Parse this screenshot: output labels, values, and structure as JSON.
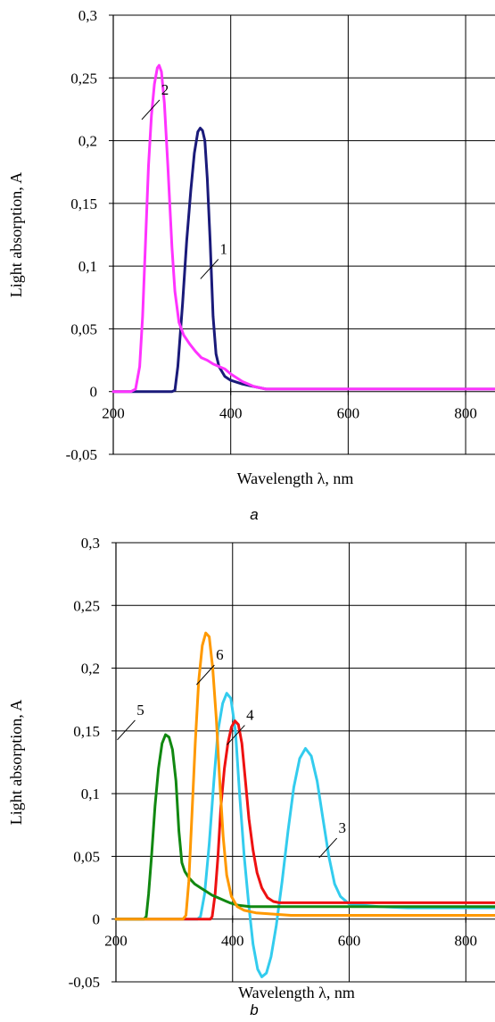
{
  "chart_data": [
    {
      "type": "line",
      "panel_label": "a",
      "xlabel": "Wavelength λ, nm",
      "ylabel": "Light absorption, A",
      "xlim": [
        200,
        850
      ],
      "ylim": [
        -0.05,
        0.3
      ],
      "grid": true,
      "x_ticks": [
        200,
        400,
        600,
        800
      ],
      "x_tick_labels": [
        "200",
        "400",
        "600",
        "800"
      ],
      "y_ticks": [
        -0.05,
        0,
        0.05,
        0.1,
        0.15,
        0.2,
        0.25,
        0.3
      ],
      "y_tick_labels": [
        "-0,05",
        "0",
        "0,05",
        "0,1",
        "0,15",
        "0,2",
        "0,25",
        "0,3"
      ],
      "series": [
        {
          "name": "1",
          "color": "#1a1a7a",
          "points": [
            [
              200,
              0
            ],
            [
              300,
              0
            ],
            [
              305,
              0.001
            ],
            [
              310,
              0.02
            ],
            [
              318,
              0.07
            ],
            [
              325,
              0.12
            ],
            [
              332,
              0.16
            ],
            [
              338,
              0.19
            ],
            [
              344,
              0.207
            ],
            [
              348,
              0.21
            ],
            [
              352,
              0.208
            ],
            [
              356,
              0.2
            ],
            [
              360,
              0.17
            ],
            [
              365,
              0.12
            ],
            [
              370,
              0.06
            ],
            [
              375,
              0.03
            ],
            [
              380,
              0.02
            ],
            [
              390,
              0.012
            ],
            [
              400,
              0.009
            ],
            [
              420,
              0.006
            ],
            [
              440,
              0.004
            ],
            [
              460,
              0.002
            ],
            [
              500,
              0.002
            ],
            [
              600,
              0.002
            ],
            [
              700,
              0.002
            ],
            [
              850,
              0.002
            ]
          ]
        },
        {
          "name": "2",
          "color": "#ff33ff",
          "points": [
            [
              200,
              0
            ],
            [
              230,
              0
            ],
            [
              238,
              0.002
            ],
            [
              245,
              0.02
            ],
            [
              250,
              0.06
            ],
            [
              255,
              0.12
            ],
            [
              260,
              0.18
            ],
            [
              265,
              0.22
            ],
            [
              270,
              0.245
            ],
            [
              275,
              0.258
            ],
            [
              278,
              0.26
            ],
            [
              282,
              0.255
            ],
            [
              287,
              0.23
            ],
            [
              293,
              0.18
            ],
            [
              300,
              0.115
            ],
            [
              305,
              0.08
            ],
            [
              312,
              0.055
            ],
            [
              320,
              0.045
            ],
            [
              330,
              0.038
            ],
            [
              340,
              0.032
            ],
            [
              350,
              0.027
            ],
            [
              360,
              0.025
            ],
            [
              370,
              0.022
            ],
            [
              380,
              0.02
            ],
            [
              390,
              0.018
            ],
            [
              400,
              0.014
            ],
            [
              410,
              0.011
            ],
            [
              420,
              0.008
            ],
            [
              430,
              0.006
            ],
            [
              440,
              0.004
            ],
            [
              460,
              0.002
            ],
            [
              500,
              0.002
            ],
            [
              600,
              0.002
            ],
            [
              700,
              0.002
            ],
            [
              850,
              0.002
            ]
          ]
        }
      ],
      "annotations": [
        {
          "text": "2",
          "x": 288,
          "y": 0.241
        },
        {
          "text": "1",
          "x": 388,
          "y": 0.114
        }
      ]
    },
    {
      "type": "line",
      "panel_label": "b",
      "xlabel": "Wavelength λ, nm",
      "ylabel": "Light absorption, A",
      "xlim": [
        200,
        850
      ],
      "ylim": [
        -0.05,
        0.3
      ],
      "grid": true,
      "x_ticks": [
        200,
        400,
        600,
        800
      ],
      "x_tick_labels": [
        "200",
        "400",
        "600",
        "800"
      ],
      "y_ticks": [
        -0.05,
        0,
        0.05,
        0.1,
        0.15,
        0.2,
        0.25,
        0.3
      ],
      "y_tick_labels": [
        "-0,05",
        "0",
        "0,05",
        "0,1",
        "0,15",
        "0,2",
        "0,25",
        "0,3"
      ],
      "series": [
        {
          "name": "3",
          "color": "#33ccee",
          "points": [
            [
              200,
              0
            ],
            [
              340,
              0
            ],
            [
              345,
              0.002
            ],
            [
              352,
              0.02
            ],
            [
              360,
              0.06
            ],
            [
              368,
              0.11
            ],
            [
              375,
              0.15
            ],
            [
              383,
              0.172
            ],
            [
              390,
              0.18
            ],
            [
              397,
              0.176
            ],
            [
              405,
              0.15
            ],
            [
              412,
              0.1
            ],
            [
              420,
              0.05
            ],
            [
              428,
              0.01
            ],
            [
              435,
              -0.02
            ],
            [
              443,
              -0.04
            ],
            [
              450,
              -0.046
            ],
            [
              458,
              -0.043
            ],
            [
              466,
              -0.03
            ],
            [
              475,
              -0.005
            ],
            [
              485,
              0.03
            ],
            [
              495,
              0.07
            ],
            [
              505,
              0.105
            ],
            [
              515,
              0.128
            ],
            [
              525,
              0.136
            ],
            [
              535,
              0.13
            ],
            [
              545,
              0.11
            ],
            [
              555,
              0.08
            ],
            [
              565,
              0.05
            ],
            [
              575,
              0.028
            ],
            [
              585,
              0.018
            ],
            [
              600,
              0.012
            ],
            [
              650,
              0.01
            ],
            [
              700,
              0.009
            ],
            [
              850,
              0.009
            ]
          ]
        },
        {
          "name": "4",
          "color": "#ee1111",
          "points": [
            [
              200,
              0
            ],
            [
              362,
              0
            ],
            [
              365,
              0.002
            ],
            [
              370,
              0.02
            ],
            [
              375,
              0.05
            ],
            [
              380,
              0.09
            ],
            [
              386,
              0.12
            ],
            [
              392,
              0.14
            ],
            [
              398,
              0.153
            ],
            [
              404,
              0.158
            ],
            [
              410,
              0.155
            ],
            [
              416,
              0.14
            ],
            [
              422,
              0.11
            ],
            [
              428,
              0.08
            ],
            [
              435,
              0.055
            ],
            [
              442,
              0.037
            ],
            [
              450,
              0.025
            ],
            [
              460,
              0.017
            ],
            [
              470,
              0.014
            ],
            [
              480,
              0.013
            ],
            [
              500,
              0.013
            ],
            [
              600,
              0.013
            ],
            [
              700,
              0.013
            ],
            [
              850,
              0.013
            ]
          ]
        },
        {
          "name": "5",
          "color": "#118811",
          "points": [
            [
              200,
              0
            ],
            [
              248,
              0
            ],
            [
              252,
              0.002
            ],
            [
              256,
              0.02
            ],
            [
              261,
              0.05
            ],
            [
              267,
              0.09
            ],
            [
              273,
              0.12
            ],
            [
              279,
              0.14
            ],
            [
              285,
              0.147
            ],
            [
              291,
              0.145
            ],
            [
              297,
              0.135
            ],
            [
              303,
              0.11
            ],
            [
              308,
              0.07
            ],
            [
              313,
              0.045
            ],
            [
              318,
              0.038
            ],
            [
              325,
              0.033
            ],
            [
              335,
              0.028
            ],
            [
              345,
              0.025
            ],
            [
              355,
              0.022
            ],
            [
              365,
              0.019
            ],
            [
              375,
              0.017
            ],
            [
              385,
              0.015
            ],
            [
              395,
              0.013
            ],
            [
              410,
              0.011
            ],
            [
              430,
              0.01
            ],
            [
              460,
              0.01
            ],
            [
              500,
              0.01
            ],
            [
              600,
              0.01
            ],
            [
              700,
              0.01
            ],
            [
              850,
              0.01
            ]
          ]
        },
        {
          "name": "6",
          "color": "#ff9900",
          "points": [
            [
              200,
              0
            ],
            [
              315,
              0
            ],
            [
              320,
              0.003
            ],
            [
              325,
              0.03
            ],
            [
              330,
              0.08
            ],
            [
              336,
              0.14
            ],
            [
              342,
              0.19
            ],
            [
              348,
              0.218
            ],
            [
              354,
              0.228
            ],
            [
              360,
              0.225
            ],
            [
              366,
              0.2
            ],
            [
              372,
              0.16
            ],
            [
              378,
              0.11
            ],
            [
              384,
              0.065
            ],
            [
              390,
              0.035
            ],
            [
              398,
              0.018
            ],
            [
              408,
              0.01
            ],
            [
              420,
              0.007
            ],
            [
              440,
              0.005
            ],
            [
              470,
              0.004
            ],
            [
              500,
              0.003
            ],
            [
              600,
              0.003
            ],
            [
              700,
              0.003
            ],
            [
              850,
              0.003
            ]
          ]
        }
      ],
      "annotations": [
        {
          "text": "5",
          "x": 242,
          "y": 0.167
        },
        {
          "text": "6",
          "x": 378,
          "y": 0.211
        },
        {
          "text": "4",
          "x": 430,
          "y": 0.163
        },
        {
          "text": "3",
          "x": 588,
          "y": 0.073
        }
      ]
    }
  ]
}
